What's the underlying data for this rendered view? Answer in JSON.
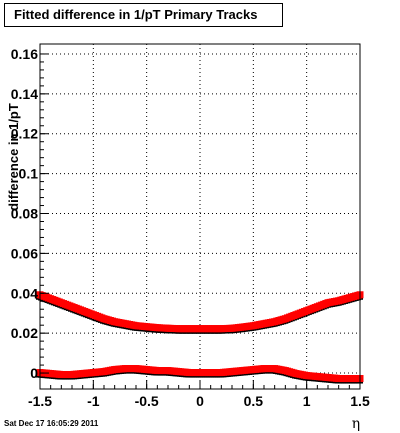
{
  "title": "Fitted difference in 1/pT  Primary Tracks",
  "timestamp": "Sat Dec 17 16:05:29 2011",
  "chart_data": {
    "type": "scatter",
    "title": "Fitted difference in 1/pT  Primary Tracks",
    "xlabel": "η",
    "ylabel": "difference in 1/pT",
    "xlim": [
      -1.5,
      1.5
    ],
    "ylim": [
      -0.008,
      0.165
    ],
    "grid": true,
    "x_ticks": [
      -1.5,
      -1,
      -0.5,
      0,
      0.5,
      1,
      1.5
    ],
    "x_tick_labels": [
      "-1.5",
      "-1",
      "-0.5",
      "0",
      "0.5",
      "1",
      "1.5"
    ],
    "y_ticks": [
      0,
      0.02,
      0.04,
      0.06,
      0.08,
      0.1,
      0.12,
      0.14,
      0.16
    ],
    "y_tick_labels": [
      "0",
      "0.02",
      "0.04",
      "0.06",
      "0.08",
      "0.1",
      "0.12",
      "0.14",
      "0.16"
    ],
    "marker_color": "#ff0000",
    "shadow_color": "#000000",
    "series": [
      {
        "x": [
          -1.5,
          -1.4,
          -1.3,
          -1.2,
          -1.1,
          -1.0,
          -0.9,
          -0.8,
          -0.7,
          -0.6,
          -0.5,
          -0.4,
          -0.3,
          -0.2,
          -0.1,
          0.0,
          0.1,
          0.2,
          0.3,
          0.4,
          0.5,
          0.6,
          0.7,
          0.8,
          0.9,
          1.0,
          1.1,
          1.2,
          1.3,
          1.4,
          1.5
        ],
        "values": [
          0.039,
          0.037,
          0.035,
          0.033,
          0.031,
          0.029,
          0.027,
          0.0255,
          0.0245,
          0.0235,
          0.023,
          0.0225,
          0.0222,
          0.022,
          0.022,
          0.022,
          0.022,
          0.022,
          0.0222,
          0.0228,
          0.0235,
          0.0245,
          0.0255,
          0.027,
          0.029,
          0.031,
          0.033,
          0.035,
          0.036,
          0.0375,
          0.039
        ]
      },
      {
        "x": [
          -1.5,
          -1.4,
          -1.3,
          -1.2,
          -1.1,
          -1.0,
          -0.9,
          -0.8,
          -0.7,
          -0.6,
          -0.5,
          -0.4,
          -0.3,
          -0.2,
          -0.1,
          0.0,
          0.1,
          0.2,
          0.3,
          0.4,
          0.5,
          0.6,
          0.7,
          0.8,
          0.9,
          1.0,
          1.1,
          1.2,
          1.3,
          1.4,
          1.5
        ],
        "values": [
          0.0,
          -0.0005,
          -0.001,
          -0.001,
          -0.0005,
          0.0,
          0.0005,
          0.0015,
          0.002,
          0.002,
          0.0015,
          0.001,
          0.001,
          0.0005,
          0.0,
          0.0,
          0.0,
          0.0,
          0.0005,
          0.001,
          0.0015,
          0.002,
          0.002,
          0.001,
          -0.0005,
          -0.0015,
          -0.002,
          -0.0025,
          -0.003,
          -0.003,
          -0.003
        ]
      }
    ]
  }
}
